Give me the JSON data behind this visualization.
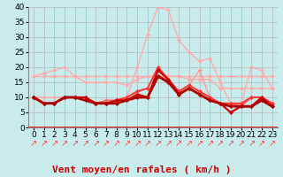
{
  "xlabel": "Vent moyen/en rafales ( km/h )",
  "background_color": "#c8ecec",
  "grid_color": "#aaaaaa",
  "xlim": [
    -0.5,
    23.5
  ],
  "ylim": [
    0,
    40
  ],
  "yticks": [
    0,
    5,
    10,
    15,
    20,
    25,
    30,
    35,
    40
  ],
  "xticks": [
    0,
    1,
    2,
    3,
    4,
    5,
    6,
    7,
    8,
    9,
    10,
    11,
    12,
    13,
    14,
    15,
    16,
    17,
    18,
    19,
    20,
    21,
    22,
    23
  ],
  "series": [
    {
      "y": [
        17,
        17,
        17,
        17,
        17,
        17,
        17,
        17,
        17,
        17,
        17,
        17,
        17,
        17,
        17,
        17,
        17,
        17,
        17,
        17,
        17,
        17,
        17,
        17
      ],
      "color": "#ffaaaa",
      "lw": 1.0,
      "marker": "D",
      "ms": 2.5
    },
    {
      "y": [
        17,
        18,
        19,
        20,
        17,
        15,
        15,
        15,
        15,
        14,
        16,
        17,
        17,
        17,
        17,
        16,
        16,
        16,
        13,
        13,
        13,
        13,
        13,
        13
      ],
      "color": "#ffaaaa",
      "lw": 1.0,
      "marker": "D",
      "ms": 2.5
    },
    {
      "y": [
        10,
        10,
        10,
        10,
        10,
        10,
        8,
        8,
        9,
        10,
        20,
        31,
        40,
        39,
        29,
        25,
        22,
        23,
        15,
        8,
        8,
        20,
        19,
        13
      ],
      "color": "#ffaaaa",
      "lw": 1.0,
      "marker": "D",
      "ms": 2.5
    },
    {
      "y": [
        10,
        8,
        8,
        10,
        10,
        10,
        8,
        8,
        9,
        10,
        12,
        13,
        19,
        16,
        12,
        14,
        19,
        10,
        8,
        8,
        8,
        10,
        10,
        8
      ],
      "color": "#ff9999",
      "lw": 1.0,
      "marker": "D",
      "ms": 2.5
    },
    {
      "y": [
        10,
        8,
        8,
        10,
        10,
        10,
        8,
        9,
        9,
        9,
        11,
        10,
        17,
        16,
        11,
        13,
        11,
        9,
        8,
        8,
        7,
        10,
        10,
        8
      ],
      "color": "#ff6666",
      "lw": 1.2,
      "marker": "D",
      "ms": 2.5
    },
    {
      "y": [
        10,
        8,
        8,
        10,
        10,
        10,
        8,
        8,
        9,
        10,
        12,
        13,
        20,
        16,
        12,
        14,
        12,
        10,
        8,
        8,
        8,
        10,
        10,
        8
      ],
      "color": "#ff3333",
      "lw": 1.4,
      "marker": "D",
      "ms": 2.5
    },
    {
      "y": [
        10,
        8,
        8,
        10,
        10,
        10,
        8,
        8,
        9,
        9,
        11,
        10,
        19,
        16,
        11,
        13,
        11,
        9,
        8,
        5,
        7,
        7,
        10,
        7
      ],
      "color": "#cc0000",
      "lw": 1.6,
      "marker": "D",
      "ms": 2.5
    },
    {
      "y": [
        10,
        8,
        8,
        10,
        10,
        9,
        8,
        8,
        8,
        9,
        10,
        10,
        17,
        15,
        11,
        13,
        11,
        9,
        8,
        7,
        7,
        7,
        9,
        7
      ],
      "color": "#aa0000",
      "lw": 2.0,
      "marker": "D",
      "ms": 2.5
    }
  ],
  "arrows": "↗↗↗↗↗↗↗↗↗↗↗↗↗↗↗↗↗↗↗↗↗↗↗↗",
  "xlabel_fontsize": 8,
  "tick_fontsize": 6.5,
  "arrow_fontsize": 7
}
